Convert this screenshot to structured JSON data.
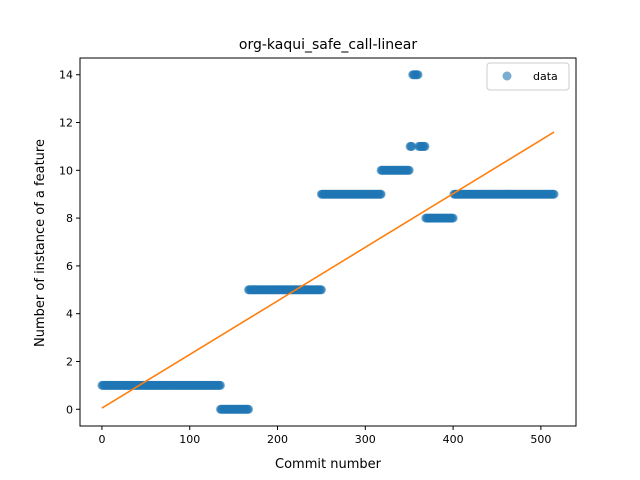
{
  "chart_data": {
    "type": "scatter",
    "title": "org-kaqui_safe_call-linear",
    "xlabel": "Commit number",
    "ylabel": "Number of instance of a feature",
    "xlim": [
      -25,
      540
    ],
    "ylim": [
      -0.7,
      14.7
    ],
    "xticks": [
      0,
      100,
      200,
      300,
      400,
      500
    ],
    "yticks": [
      0,
      2,
      4,
      6,
      8,
      10,
      12,
      14
    ],
    "grid": false,
    "legend": {
      "position": "top-right",
      "entries": [
        "data"
      ]
    },
    "colors": {
      "points": "#1f77b4",
      "fit": "#ff7f0e",
      "axes": "#000000"
    },
    "series": [
      {
        "name": "data",
        "kind": "points",
        "segments": [
          {
            "x_start": 0,
            "x_end": 135,
            "y": 1
          },
          {
            "x_start": 135,
            "x_end": 167,
            "y": 0
          },
          {
            "x_start": 167,
            "x_end": 250,
            "y": 5
          },
          {
            "x_start": 250,
            "x_end": 318,
            "y": 9
          },
          {
            "x_start": 318,
            "x_end": 350,
            "y": 10
          },
          {
            "x_start": 351,
            "x_end": 353,
            "y": 11
          },
          {
            "x_start": 354,
            "x_end": 360,
            "y": 14
          },
          {
            "x_start": 361,
            "x_end": 368,
            "y": 11
          },
          {
            "x_start": 369,
            "x_end": 400,
            "y": 8
          },
          {
            "x_start": 401,
            "x_end": 515,
            "y": 9
          }
        ]
      },
      {
        "name": "",
        "kind": "line",
        "x": [
          0,
          515
        ],
        "y": [
          0.05,
          11.6
        ]
      }
    ]
  }
}
